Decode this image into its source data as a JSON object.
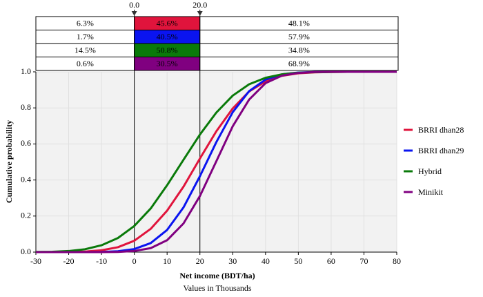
{
  "chart_data": {
    "type": "line",
    "x_label": "Net income (BDT/ha)",
    "x_sublabel": "Values in Thousands",
    "y_label": "Cumulative probability",
    "x": [
      -30,
      -25,
      -20,
      -15,
      -10,
      -5,
      0,
      5,
      10,
      15,
      20,
      25,
      30,
      35,
      40,
      45,
      50,
      55,
      60,
      65,
      70,
      75,
      80
    ],
    "series": [
      {
        "name": "BRRI dhan28",
        "color": "#e0143c",
        "band_labels": [
          "6.3%",
          "45.6%",
          "48.1%"
        ],
        "values": [
          0,
          0,
          0.001,
          0.003,
          0.01,
          0.027,
          0.063,
          0.129,
          0.23,
          0.363,
          0.519,
          0.67,
          0.797,
          0.891,
          0.947,
          0.978,
          0.992,
          0.997,
          0.999,
          1,
          1,
          1,
          1
        ]
      },
      {
        "name": "BRRI dhan29",
        "color": "#0a14f0",
        "band_labels": [
          "1.7%",
          "40.5%",
          "57.9%"
        ],
        "values": [
          0,
          0,
          0,
          0,
          0.001,
          0.005,
          0.017,
          0.05,
          0.123,
          0.248,
          0.421,
          0.61,
          0.776,
          0.893,
          0.957,
          0.986,
          0.996,
          0.999,
          1,
          1,
          1,
          1,
          1
        ]
      },
      {
        "name": "Hybrid",
        "color": "#0a7a0a",
        "band_labels": [
          "14.5%",
          "50.8%",
          "34.8%"
        ],
        "values": [
          0.001,
          0.002,
          0.006,
          0.016,
          0.038,
          0.078,
          0.145,
          0.242,
          0.371,
          0.512,
          0.652,
          0.774,
          0.868,
          0.931,
          0.967,
          0.986,
          0.995,
          0.998,
          0.999,
          1,
          1,
          1,
          1
        ]
      },
      {
        "name": "Minikit",
        "color": "#800080",
        "band_labels": [
          "0.6%",
          "30.5%",
          "68.9%"
        ],
        "values": [
          0,
          0,
          0,
          0,
          0,
          0.001,
          0.006,
          0.022,
          0.066,
          0.159,
          0.311,
          0.504,
          0.698,
          0.846,
          0.937,
          0.979,
          0.994,
          0.999,
          1,
          1,
          1,
          1,
          1
        ]
      }
    ],
    "delimiters": [
      {
        "value": 0,
        "label": "0.0"
      },
      {
        "value": 20,
        "label": "20.0"
      }
    ],
    "xlim": [
      -30,
      80
    ],
    "xticks": [
      -30,
      -20,
      -10,
      0,
      10,
      20,
      30,
      40,
      50,
      60,
      70,
      80
    ],
    "ylim": [
      0,
      1
    ],
    "yticks": [
      {
        "value": 0,
        "label": "0.0"
      },
      {
        "value": 0.2,
        "label": "0.2"
      },
      {
        "value": 0.4,
        "label": "0.4"
      },
      {
        "value": 0.6,
        "label": "0.6"
      },
      {
        "value": 0.8,
        "label": "0.8"
      },
      {
        "value": 1,
        "label": "1.0"
      }
    ],
    "grid": true,
    "legend": "right"
  }
}
